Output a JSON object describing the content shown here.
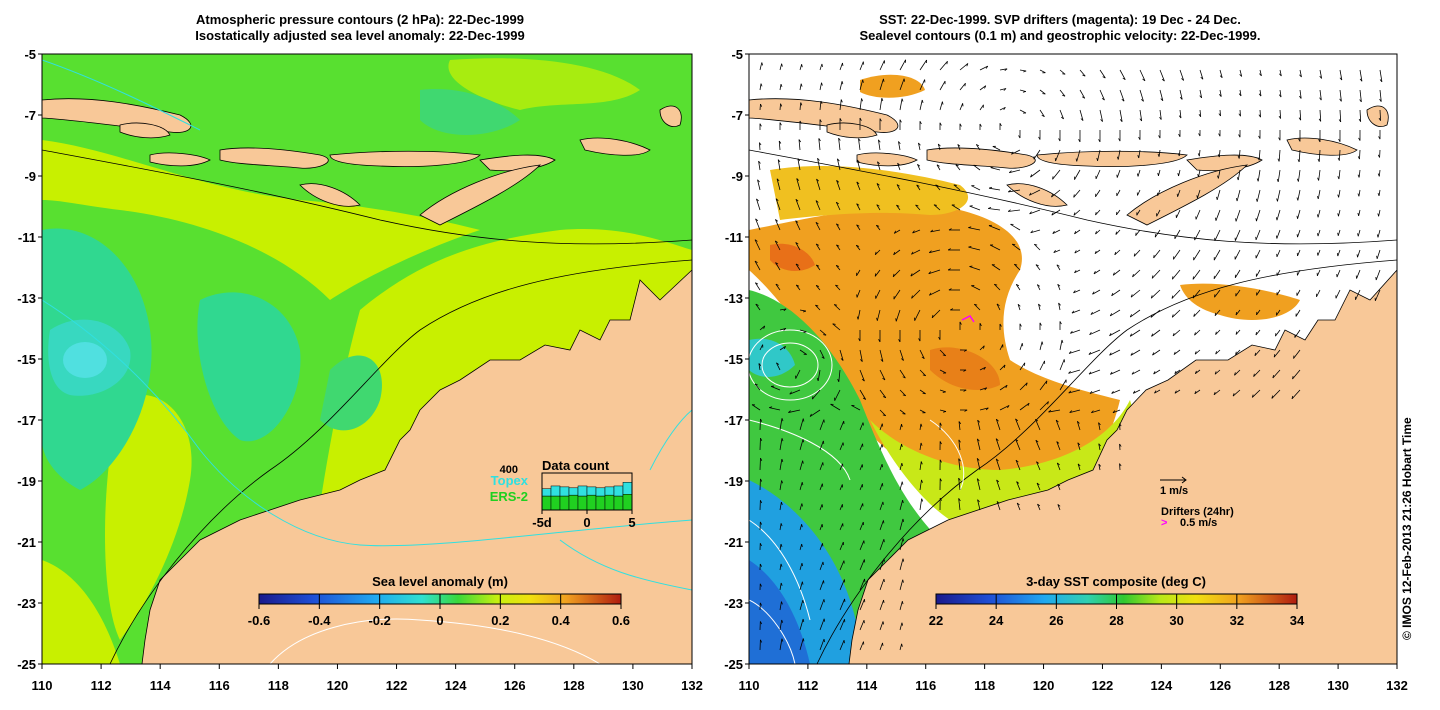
{
  "left_panel": {
    "title_line1": "Atmospheric pressure contours (2 hPa): 22-Dec-1999",
    "title_line2": "Isostatically adjusted sea level anomaly: 22-Dec-1999",
    "colorbar": {
      "label": "Sea level anomaly (m)",
      "ticks": [
        "-0.6",
        "-0.4",
        "-0.2",
        "0",
        "0.2",
        "0.4",
        "0.6"
      ],
      "colors": [
        "#1a1a8c",
        "#1f4fd6",
        "#20a8f0",
        "#30e0d0",
        "#3ad83a",
        "#a6f01a",
        "#f0f010",
        "#f0b020",
        "#f07010",
        "#c02010"
      ]
    },
    "data_count": {
      "title": "Data count",
      "max_label": "400",
      "topex_label": "Topex",
      "ers_label": "ERS-2",
      "x_ticks": [
        "-5d",
        "0",
        "5"
      ],
      "topex_values": [
        230,
        260,
        250,
        240,
        260,
        250,
        240,
        250,
        260,
        300
      ],
      "ers_values": [
        150,
        150,
        150,
        160,
        150,
        160,
        150,
        160,
        150,
        170
      ],
      "topex_color": "#30e0e0",
      "ers_color": "#20d020"
    }
  },
  "right_panel": {
    "title_line1": "SST: 22-Dec-1999. SVP drifters (magenta): 19 Dec - 24 Dec.",
    "title_line2": "Sealevel contours (0.1 m) and geostrophic velocity: 22-Dec-1999.",
    "colorbar": {
      "label": "3-day SST composite (deg C)",
      "ticks": [
        "22",
        "24",
        "26",
        "28",
        "30",
        "32",
        "34"
      ],
      "colors": [
        "#1a1a8c",
        "#1f4fd6",
        "#20a8f0",
        "#30d8c0",
        "#30c830",
        "#a0e020",
        "#f0f010",
        "#f0b020",
        "#f07010",
        "#c02010"
      ]
    },
    "velocity_scale_label": "1 m/s",
    "drifters_label": "Drifters (24hr)",
    "drifter_marker": ">",
    "drifter_speed_label": "0.5 m/s",
    "drifter_color": "#ff00ff"
  },
  "axes": {
    "lon_ticks": [
      "110",
      "112",
      "114",
      "116",
      "118",
      "120",
      "122",
      "124",
      "126",
      "128",
      "130",
      "132"
    ],
    "lat_ticks": [
      "-5",
      "-7",
      "-9",
      "-11",
      "-13",
      "-15",
      "-17",
      "-19",
      "-21",
      "-23",
      "-25"
    ]
  },
  "credit": "© IMOS 12-Feb-2013 21:26 Hobart Time",
  "colors": {
    "land": "#f8c898",
    "sla_ocean": "#58e030",
    "sla_high": "#c8f000",
    "sla_low": "#30d0a0",
    "sst_warm": "#f0a020",
    "sst_mid": "#40c840",
    "sst_cool": "#20a0e0"
  }
}
